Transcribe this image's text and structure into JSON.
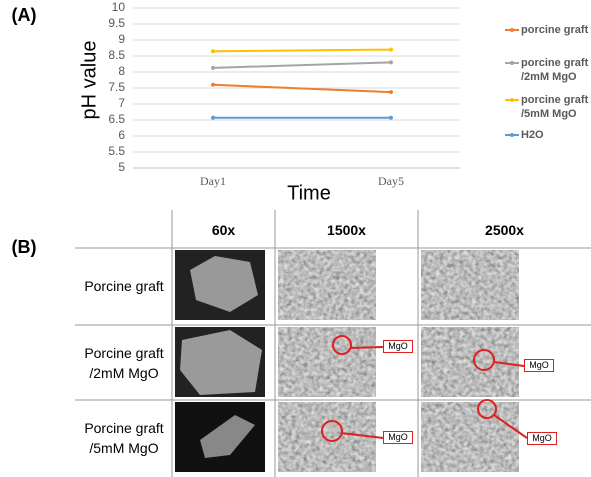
{
  "panel_a": "(A)",
  "chart_data": {
    "type": "line",
    "y_label": "pH value",
    "x_label": "Time",
    "categories": [
      "Day1",
      "Day5"
    ],
    "series": [
      {
        "name": "porcine graft",
        "color": "#ed7d31",
        "values": [
          7.6,
          7.37
        ]
      },
      {
        "name": "porcine graft /2mM MgO",
        "color": "#a5a5a5",
        "values": [
          8.13,
          8.3
        ]
      },
      {
        "name": "porcine graft /5mM MgO",
        "color": "#ffc000",
        "values": [
          8.65,
          8.7
        ]
      },
      {
        "name": "H2O",
        "color": "#5b9bd5",
        "values": [
          6.57,
          6.57
        ]
      }
    ],
    "ylim": [
      5,
      10
    ],
    "yticks": [
      5,
      5.5,
      6,
      6.5,
      7,
      7.5,
      8,
      8.5,
      9,
      9.5,
      10
    ],
    "grid": true
  },
  "table": {
    "label": "(B)",
    "headers": [
      "60x",
      "1500x",
      "2500x"
    ],
    "rows": [
      "Porcine graft",
      "Porcine graft /2mM MgO",
      "Porcine graft /5mM MgO"
    ],
    "annotations": [
      "MgO",
      "MgO",
      "MgO",
      "MgO"
    ]
  }
}
